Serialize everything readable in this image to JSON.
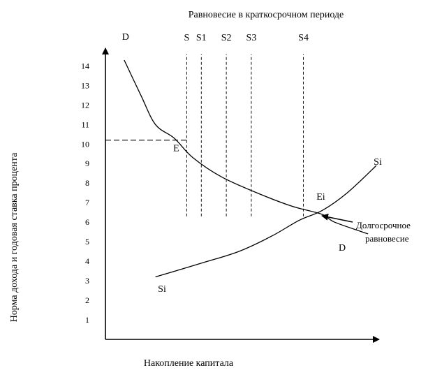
{
  "chart_data": {
    "type": "line",
    "title": "Равновесие в краткосрочном периоде",
    "xlabel": "Накопление капитала",
    "ylabel": "Норма дохода и годовая ставка процента",
    "ylim": [
      0,
      14.8
    ],
    "xlim": [
      0,
      13.2
    ],
    "yticks": [
      "1",
      "2",
      "3",
      "4",
      "5",
      "6",
      "7",
      "8",
      "9",
      "10",
      "11",
      "12",
      "13",
      "14"
    ],
    "grid": false,
    "series": [
      {
        "name": "D",
        "end_label": "D",
        "points": [
          [
            0.9,
            14.3
          ],
          [
            1.7,
            12.5
          ],
          [
            2.4,
            11.0
          ],
          [
            3.3,
            10.3
          ],
          [
            4.2,
            9.3
          ],
          [
            5.6,
            8.3
          ],
          [
            7.5,
            7.4
          ],
          [
            9.0,
            6.8
          ],
          [
            10.4,
            6.4
          ],
          [
            11.0,
            6.0
          ],
          [
            12.6,
            5.4
          ]
        ]
      },
      {
        "name": "Si",
        "end_label": "Si",
        "points": [
          [
            2.4,
            3.2
          ],
          [
            4.6,
            3.9
          ],
          [
            6.4,
            4.5
          ],
          [
            8.0,
            5.3
          ],
          [
            9.3,
            6.1
          ],
          [
            10.4,
            6.6
          ],
          [
            11.6,
            7.5
          ],
          [
            13.0,
            8.9
          ]
        ]
      }
    ],
    "supply_lines": [
      {
        "label": "S",
        "x": 3.9
      },
      {
        "label": "S1",
        "x": 4.6
      },
      {
        "label": "S2",
        "x": 5.8
      },
      {
        "label": "S3",
        "x": 7.0
      },
      {
        "label": "S4",
        "x": 9.5
      }
    ],
    "supply_line_ylim": [
      6.3,
      14.6
    ],
    "short_run_equilibrium": {
      "label": "E",
      "x": 3.9,
      "y": 10.2
    },
    "long_run_equilibrium": {
      "label": "Ei",
      "x": 10.4,
      "y": 6.5
    },
    "annotation": {
      "line1": "Долгосрочное",
      "line2": "равновесие"
    }
  }
}
